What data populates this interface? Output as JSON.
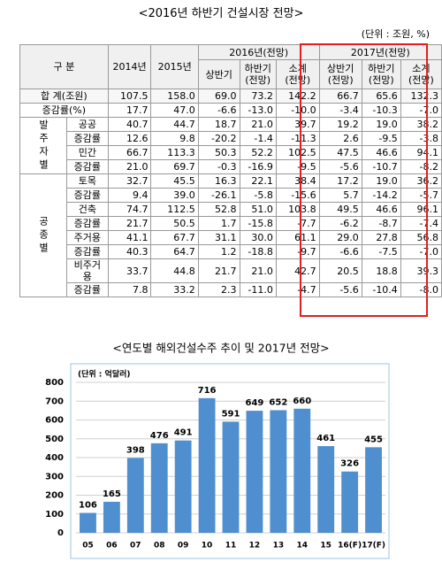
{
  "header": {
    "title": "<2016년 하반기 건설시장 전망>",
    "unit": "(단위 : 조원, %)"
  },
  "table": {
    "header_top": [
      "구 분",
      "2014년",
      "2015년",
      "2016년(전망)",
      "2017년(전망)"
    ],
    "header_sub": [
      "상반기",
      "하반기\n(전망)",
      "소계\n(전망)",
      "상반기\n(전망)",
      "하반기\n(전망)",
      "소계\n(전망)"
    ],
    "rows": [
      [
        "합 계(조원)",
        "107.5",
        "158.0",
        "69.0",
        "73.2",
        "142.2",
        "66.7",
        "65.6",
        "132.3"
      ],
      [
        "증감률(%)",
        "17.7",
        "47.0",
        "-6.6",
        "-13.0",
        "-10.0",
        "-3.4",
        "-10.3",
        "-7.0"
      ]
    ],
    "groups": [
      {
        "label": "발주자별",
        "rows": [
          [
            "공공",
            "40.7",
            "44.7",
            "18.7",
            "21.0",
            "39.7",
            "19.2",
            "19.0",
            "38.2"
          ],
          [
            "증감률",
            "12.6",
            "9.8",
            "-20.2",
            "-1.4",
            "-11.3",
            "2.6",
            "-9.5",
            "-3.8"
          ],
          [
            "민간",
            "66.7",
            "113.3",
            "50.3",
            "52.2",
            "102.5",
            "47.5",
            "46.6",
            "94.1"
          ],
          [
            "증감률",
            "21.0",
            "69.7",
            "-0.3",
            "-16.9",
            "-9.5",
            "-5.6",
            "-10.7",
            "-8.2"
          ]
        ]
      },
      {
        "label": "공종별",
        "rows": [
          [
            "토목",
            "32.7",
            "45.5",
            "16.3",
            "22.1",
            "38.4",
            "17.2",
            "19.0",
            "36.2"
          ],
          [
            "증감률",
            "9.4",
            "39.0",
            "-26.1",
            "-5.8",
            "-15.6",
            "5.7",
            "-14.2",
            "-5.7"
          ],
          [
            "건축",
            "74.7",
            "112.5",
            "52.8",
            "51.0",
            "103.8",
            "49.5",
            "46.6",
            "96.1"
          ],
          [
            "증감률",
            "21.7",
            "50.5",
            "1.7",
            "-15.8",
            "-7.7",
            "-6.2",
            "-8.7",
            "-7.4"
          ],
          [
            "주거용",
            "41.1",
            "67.7",
            "31.1",
            "30.0",
            "61.1",
            "29.0",
            "27.8",
            "56.8"
          ],
          [
            "증감률",
            "40.3",
            "64.7",
            "1.2",
            "-18.8",
            "-9.7",
            "-6.6",
            "-7.5",
            "-7.0"
          ],
          [
            "비주거용",
            "33.7",
            "44.8",
            "21.7",
            "21.0",
            "42.7",
            "20.5",
            "18.8",
            "39.3"
          ],
          [
            "증감률",
            "7.8",
            "33.2",
            "2.3",
            "-11.0",
            "-4.7",
            "-5.6",
            "-10.4",
            "-8.0"
          ]
        ]
      }
    ]
  },
  "chart_data": {
    "type": "bar",
    "title": "<연도별 해외건설수주 추이 및 2017년 전망>",
    "unit": "(단위 : 억달러)",
    "categories": [
      "05",
      "06",
      "07",
      "08",
      "09",
      "10",
      "11",
      "12",
      "13",
      "14",
      "15",
      "16(F)",
      "17(F)"
    ],
    "values": [
      106,
      165,
      398,
      476,
      491,
      716,
      591,
      649,
      652,
      660,
      461,
      326,
      455
    ],
    "color": "#4f8fd0",
    "ylim": [
      0,
      800
    ],
    "yticks": [
      0,
      100,
      200,
      300,
      400,
      500,
      600,
      700,
      800
    ],
    "grid": true
  }
}
